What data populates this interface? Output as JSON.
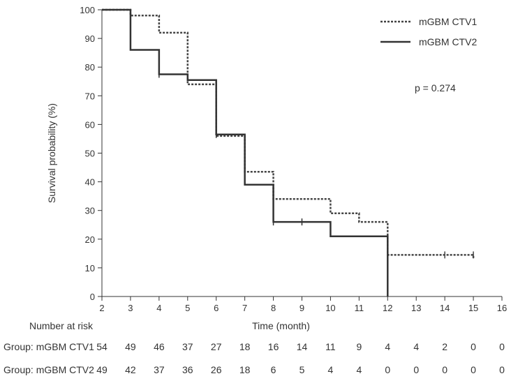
{
  "chart_data": {
    "type": "line",
    "subtype": "kaplan-meier",
    "title": "",
    "xlabel": "Time (month)",
    "ylabel": "Survival probability (%)",
    "xlim": [
      2,
      16
    ],
    "ylim": [
      0,
      100
    ],
    "x_ticks": [
      2,
      3,
      4,
      5,
      6,
      7,
      8,
      9,
      10,
      11,
      12,
      13,
      14,
      15,
      16
    ],
    "y_ticks": [
      0,
      10,
      20,
      30,
      40,
      50,
      60,
      70,
      80,
      90,
      100
    ],
    "legend_position": "top-right",
    "annotation": "p = 0.274",
    "series": [
      {
        "name": "mGBM CTV1",
        "style": "dotted",
        "color": "#444444",
        "steps": [
          {
            "x": 2,
            "y": 100
          },
          {
            "x": 3,
            "y": 98
          },
          {
            "x": 4,
            "y": 92
          },
          {
            "x": 5,
            "y": 74
          },
          {
            "x": 6,
            "y": 56
          },
          {
            "x": 7,
            "y": 43.5
          },
          {
            "x": 8,
            "y": 34
          },
          {
            "x": 10,
            "y": 29
          },
          {
            "x": 11,
            "y": 26
          },
          {
            "x": 12,
            "y": 14.5
          },
          {
            "x": 15,
            "y": 13
          }
        ],
        "censor_marks": [
          {
            "x": 14,
            "y": 14.5
          },
          {
            "x": 15,
            "y": 14.5
          }
        ]
      },
      {
        "name": "mGBM CTV2",
        "style": "solid",
        "color": "#333333",
        "steps": [
          {
            "x": 2,
            "y": 100
          },
          {
            "x": 3,
            "y": 86
          },
          {
            "x": 4,
            "y": 77.5
          },
          {
            "x": 5,
            "y": 75.5
          },
          {
            "x": 6,
            "y": 56.5
          },
          {
            "x": 7,
            "y": 39
          },
          {
            "x": 8,
            "y": 26
          },
          {
            "x": 10,
            "y": 21
          },
          {
            "x": 12,
            "y": 0
          }
        ],
        "censor_marks": [
          {
            "x": 4,
            "y": 77.5
          },
          {
            "x": 6,
            "y": 56.5
          },
          {
            "x": 8,
            "y": 26
          },
          {
            "x": 9,
            "y": 26
          }
        ]
      }
    ],
    "risk_table": {
      "header": "Number at risk",
      "rows": [
        {
          "label": "Group: mGBM CTV1",
          "values": [
            "54",
            "49",
            "46",
            "37",
            "27",
            "18",
            "16",
            "14",
            "11",
            "9",
            "4",
            "4",
            "2",
            "0",
            "0"
          ]
        },
        {
          "label": "Group: mGBM CTV2",
          "values": [
            "49",
            "42",
            "37",
            "36",
            "26",
            "18",
            "6",
            "5",
            "4",
            "4",
            "0",
            "0",
            "0",
            "0",
            "0"
          ]
        }
      ]
    }
  }
}
